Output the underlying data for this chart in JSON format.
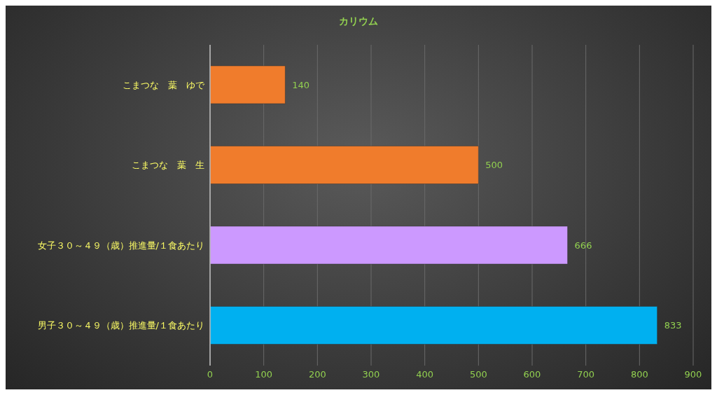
{
  "chart_data": {
    "type": "bar",
    "orientation": "horizontal",
    "title": "カリウム",
    "categories": [
      "こまつな　葉　ゆで",
      "こまつな　葉　生",
      "女子３０～４９（歳）推進量/１食あたり",
      "男子３０～４９（歳）推進量/１食あたり"
    ],
    "values": [
      140,
      500,
      666,
      833
    ],
    "colors": [
      "#f07c2c",
      "#f07c2c",
      "#cc99ff",
      "#00b0f0"
    ],
    "xlim": [
      0,
      900
    ],
    "xticks": [
      0,
      100,
      200,
      300,
      400,
      500,
      600,
      700,
      800,
      900
    ],
    "grid": "x",
    "data_labels": true
  }
}
